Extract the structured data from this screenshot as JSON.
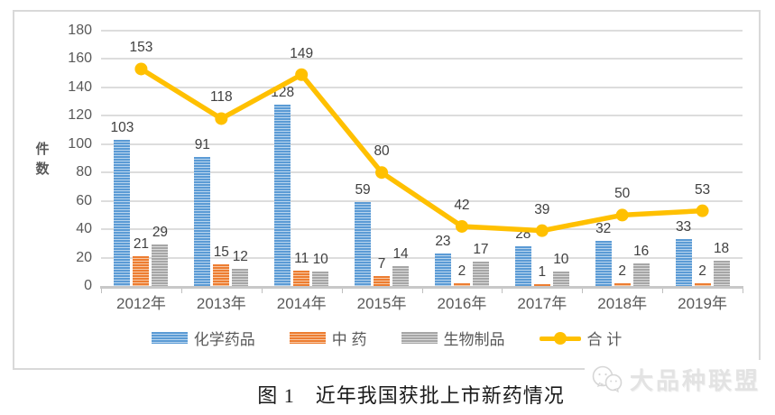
{
  "chart_data": {
    "type": "bar+line",
    "title": "",
    "categories": [
      "2012年",
      "2013年",
      "2014年",
      "2015年",
      "2016年",
      "2017年",
      "2018年",
      "2019年"
    ],
    "series": [
      {
        "name": "化学药品",
        "type": "bar",
        "color": "#5B9BD5",
        "stripe": "#B9D5EE",
        "values": [
          103,
          91,
          128,
          59,
          23,
          28,
          32,
          33
        ]
      },
      {
        "name": "中 药",
        "type": "bar",
        "color": "#ED7D31",
        "stripe": "#F7C8A4",
        "values": [
          21,
          15,
          11,
          7,
          2,
          1,
          2,
          2
        ]
      },
      {
        "name": "生物制品",
        "type": "bar",
        "color": "#A6A6A6",
        "stripe": "#DBDBDB",
        "values": [
          29,
          12,
          10,
          14,
          17,
          10,
          16,
          18
        ]
      },
      {
        "name": "合 计",
        "type": "line",
        "color": "#FFC000",
        "values": [
          153,
          118,
          149,
          80,
          42,
          39,
          50,
          53
        ]
      }
    ],
    "ylabel": "件数",
    "xlabel": "",
    "ylim": [
      0,
      180
    ],
    "ytick_step": 20,
    "grid": true,
    "legend_position": "bottom"
  },
  "caption": "图 1　近年我国获批上市新药情况",
  "watermark": {
    "text": "大品种联盟",
    "icon": "wechat-icon"
  }
}
